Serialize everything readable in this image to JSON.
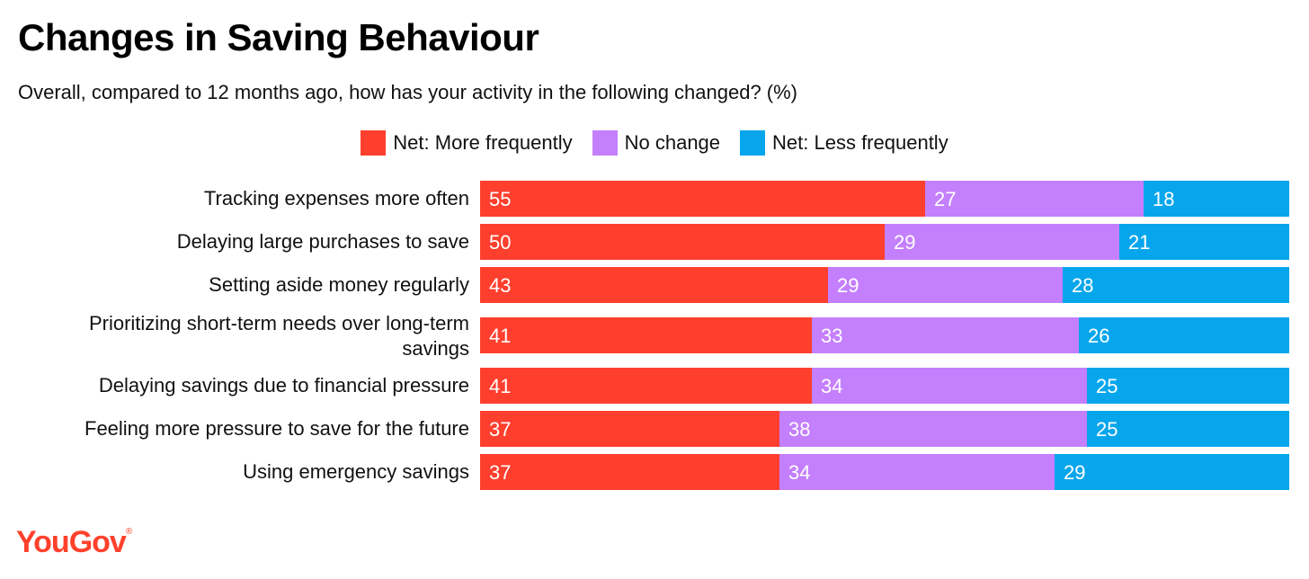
{
  "chart_data": {
    "type": "bar",
    "orientation": "horizontal",
    "stacked": true,
    "title": "Changes in Saving Behaviour",
    "subtitle": "Overall, compared to 12 months ago, how has your activity in the following changed? (%)",
    "legend_position": "top",
    "categories": [
      "Tracking expenses more often",
      "Delaying large purchases to save",
      "Setting aside money regularly",
      "Prioritizing short-term needs over long-term savings",
      "Delaying savings due to financial pressure",
      "Feeling more pressure to save for the future",
      "Using emergency savings"
    ],
    "series": [
      {
        "name": "Net: More frequently",
        "color": "#ff3f2e",
        "values": [
          55,
          50,
          43,
          41,
          41,
          37,
          37
        ]
      },
      {
        "name": "No change",
        "color": "#c47ffd",
        "values": [
          27,
          29,
          29,
          33,
          34,
          38,
          34
        ]
      },
      {
        "name": "Net: Less frequently",
        "color": "#07a6ec",
        "values": [
          18,
          21,
          28,
          26,
          25,
          25,
          29
        ]
      }
    ],
    "xlim": [
      0,
      100
    ],
    "grid": false
  },
  "brand": {
    "logo_text": "YouGov",
    "logo_mark": "®",
    "logo_color": "#ff412c"
  }
}
